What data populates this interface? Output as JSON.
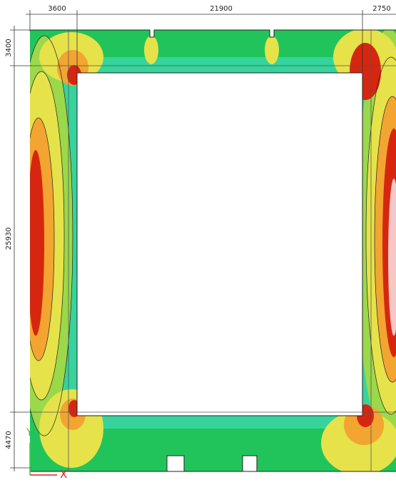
{
  "dimensions": {
    "horizontal": [
      "3600",
      "21900",
      "2750"
    ],
    "vertical": [
      "3400",
      "25930",
      "4470"
    ]
  },
  "axis_icon": {
    "x": "X",
    "y": "Y"
  }
}
